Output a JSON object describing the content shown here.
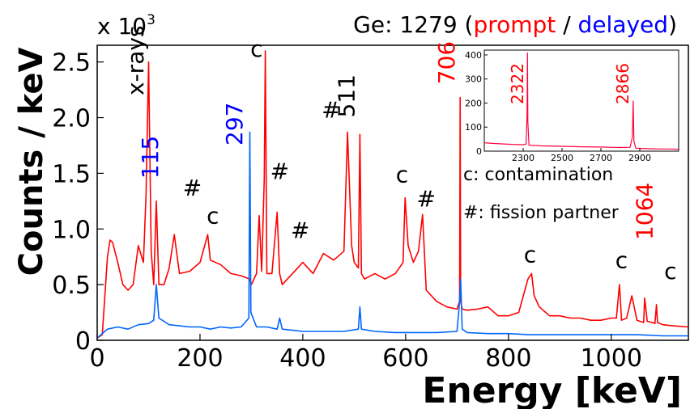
{
  "chart_data": [
    {
      "type": "line",
      "title_parts": [
        {
          "text": "Ge: 1279 (",
          "color": "#000000"
        },
        {
          "text": "prompt",
          "color": "#ff0000"
        },
        {
          "text": " / ",
          "color": "#000000"
        },
        {
          "text": "delayed",
          "color": "#0000ff"
        },
        {
          "text": ")",
          "color": "#000000"
        }
      ],
      "multiplier": "x 10",
      "multiplier_exp": "3",
      "xlabel": "Energy [keV]",
      "ylabel": "Counts / keV",
      "xlim": [
        0,
        1150
      ],
      "ylim": [
        0,
        2.65
      ],
      "xticks": [
        0,
        200,
        400,
        600,
        800,
        1000
      ],
      "xtick_labels": [
        "0",
        "200",
        "400",
        "600",
        "800",
        "1000"
      ],
      "yticks": [
        0,
        0.5,
        1.0,
        1.5,
        2.0,
        2.5
      ],
      "ytick_labels": [
        "0",
        "0.5",
        "1.0",
        "1.5",
        "2.0",
        "2.5"
      ],
      "grid": false,
      "series": [
        {
          "color": "#ff0000",
          "x": [
            0,
            10,
            20,
            25,
            30,
            40,
            50,
            60,
            70,
            80,
            90,
            95,
            100,
            105,
            110,
            115,
            120,
            130,
            140,
            150,
            160,
            180,
            200,
            215,
            220,
            240,
            260,
            280,
            297,
            300,
            310,
            315,
            320,
            325,
            327,
            330,
            340,
            350,
            355,
            360,
            380,
            400,
            420,
            440,
            460,
            480,
            487,
            495,
            500,
            508,
            511,
            514,
            520,
            540,
            560,
            580,
            595,
            599,
            605,
            615,
            625,
            633,
            640,
            660,
            680,
            700,
            705,
            706,
            707,
            710,
            720,
            740,
            760,
            780,
            800,
            820,
            838,
            845,
            850,
            860,
            880,
            900,
            920,
            940,
            960,
            980,
            1000,
            1010,
            1016,
            1020,
            1030,
            1040,
            1050,
            1063,
            1065,
            1070,
            1080,
            1085,
            1088,
            1090,
            1100,
            1120,
            1150
          ],
          "values": [
            0.02,
            0.05,
            0.75,
            0.9,
            0.88,
            0.7,
            0.5,
            0.45,
            0.5,
            0.85,
            0.7,
            1.3,
            2.5,
            0.8,
            0.5,
            1.25,
            0.5,
            0.5,
            0.65,
            0.95,
            0.6,
            0.62,
            0.7,
            0.95,
            0.72,
            0.68,
            0.6,
            0.58,
            0.55,
            0.5,
            0.6,
            1.12,
            0.62,
            1.45,
            2.6,
            0.6,
            0.6,
            1.15,
            0.6,
            0.5,
            0.6,
            0.7,
            0.6,
            0.78,
            0.72,
            0.8,
            1.87,
            0.85,
            0.7,
            0.65,
            1.85,
            0.6,
            0.55,
            0.6,
            0.55,
            0.6,
            0.7,
            1.28,
            0.85,
            0.7,
            0.8,
            1.13,
            0.45,
            0.35,
            0.3,
            0.28,
            0.35,
            2.18,
            0.35,
            0.28,
            0.27,
            0.28,
            0.3,
            0.22,
            0.22,
            0.25,
            0.55,
            0.6,
            0.4,
            0.3,
            0.22,
            0.22,
            0.2,
            0.2,
            0.18,
            0.18,
            0.2,
            0.2,
            0.5,
            0.18,
            0.2,
            0.4,
            0.18,
            0.16,
            0.38,
            0.17,
            0.16,
            0.15,
            0.32,
            0.16,
            0.14,
            0.13,
            0.12
          ]
        },
        {
          "color": "#0066ff",
          "x": [
            0,
            20,
            40,
            60,
            80,
            100,
            110,
            115,
            120,
            140,
            160,
            180,
            200,
            220,
            240,
            260,
            280,
            295,
            297,
            299,
            310,
            330,
            350,
            355,
            360,
            380,
            400,
            440,
            480,
            508,
            511,
            514,
            540,
            580,
            620,
            660,
            700,
            705,
            707,
            710,
            720,
            760,
            800,
            840,
            900,
            950,
            1000,
            1050,
            1100,
            1150
          ],
          "values": [
            0.02,
            0.1,
            0.12,
            0.1,
            0.14,
            0.15,
            0.18,
            0.5,
            0.2,
            0.14,
            0.13,
            0.12,
            0.12,
            0.1,
            0.12,
            0.11,
            0.12,
            0.2,
            1.87,
            0.25,
            0.12,
            0.12,
            0.1,
            0.2,
            0.1,
            0.09,
            0.08,
            0.08,
            0.08,
            0.1,
            0.3,
            0.1,
            0.08,
            0.07,
            0.07,
            0.07,
            0.08,
            0.35,
            0.55,
            0.1,
            0.07,
            0.06,
            0.06,
            0.05,
            0.05,
            0.05,
            0.05,
            0.05,
            0.04,
            0.04
          ]
        }
      ],
      "annotations": [
        {
          "text": "x-rays",
          "color": "#000000",
          "x": 90,
          "y": 2.2,
          "rotated": true
        },
        {
          "text": "115",
          "color": "#0000ff",
          "x": 118,
          "y": 1.45,
          "rotated": true
        },
        {
          "text": "#",
          "color": "#000000",
          "x": 185,
          "y": 1.3,
          "rotated": false
        },
        {
          "text": "c",
          "color": "#000000",
          "x": 225,
          "y": 1.05,
          "rotated": false
        },
        {
          "text": "297",
          "color": "#0000ff",
          "x": 282,
          "y": 1.75,
          "rotated": true
        },
        {
          "text": "c",
          "color": "#000000",
          "x": 310,
          "y": 2.55,
          "rotated": false
        },
        {
          "text": "#",
          "color": "#000000",
          "x": 355,
          "y": 1.45,
          "rotated": false
        },
        {
          "text": "#",
          "color": "#000000",
          "x": 395,
          "y": 0.92,
          "rotated": false
        },
        {
          "text": "#",
          "color": "#000000",
          "x": 455,
          "y": 2.0,
          "rotated": false
        },
        {
          "text": "511",
          "color": "#000000",
          "x": 500,
          "y": 2.0,
          "rotated": true
        },
        {
          "text": "c",
          "color": "#000000",
          "x": 593,
          "y": 1.42,
          "rotated": false
        },
        {
          "text": "#",
          "color": "#000000",
          "x": 640,
          "y": 1.2,
          "rotated": false
        },
        {
          "text": "706",
          "color": "#ff0000",
          "x": 695,
          "y": 2.3,
          "rotated": true
        },
        {
          "text": "c",
          "color": "#000000",
          "x": 842,
          "y": 0.7,
          "rotated": false
        },
        {
          "text": "c",
          "color": "#000000",
          "x": 1020,
          "y": 0.65,
          "rotated": false
        },
        {
          "text": "1064",
          "color": "#ff0000",
          "x": 1080,
          "y": 0.9,
          "rotated": true
        },
        {
          "text": "c",
          "color": "#000000",
          "x": 1115,
          "y": 0.55,
          "rotated": false
        }
      ],
      "legend_notes": [
        "c: contamination",
        "#: fission partner"
      ]
    },
    {
      "type": "line",
      "inset": true,
      "xlim": [
        2100,
        3100
      ],
      "ylim": [
        0,
        420
      ],
      "xticks": [
        2300,
        2500,
        2700,
        2900
      ],
      "xtick_labels": [
        "2300",
        "2500",
        "2700",
        "2900"
      ],
      "yticks": [
        0,
        100,
        200,
        300,
        400
      ],
      "ytick_labels": [
        "0",
        "100",
        "200",
        "300",
        "400"
      ],
      "series": [
        {
          "color": "#ff0040",
          "x": [
            2100,
            2150,
            2200,
            2250,
            2300,
            2315,
            2320,
            2322,
            2324,
            2330,
            2400,
            2500,
            2600,
            2700,
            2800,
            2850,
            2862,
            2866,
            2870,
            2880,
            2950,
            3000,
            3050,
            3100
          ],
          "values": [
            35,
            32,
            30,
            28,
            27,
            30,
            150,
            410,
            120,
            25,
            22,
            20,
            18,
            17,
            15,
            16,
            60,
            210,
            40,
            12,
            10,
            9,
            9,
            8
          ]
        }
      ],
      "annotations": [
        {
          "text": "2322",
          "color": "#ff0000"
        },
        {
          "text": "2866",
          "color": "#ff0000"
        }
      ]
    }
  ]
}
